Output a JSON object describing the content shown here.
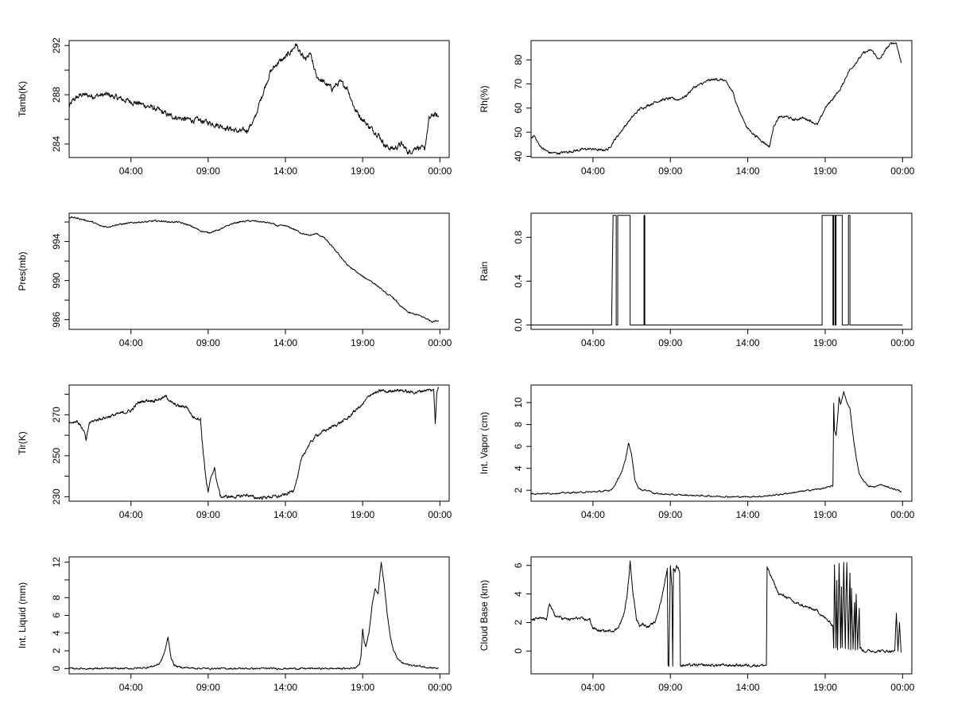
{
  "figure": {
    "background": "#ffffff",
    "line_color": "#000000"
  },
  "chart_data": [
    {
      "type": "line",
      "ylabel": "Tamb(K)",
      "xlabel": "",
      "xlim": [
        0,
        24.6
      ],
      "ylim": [
        282.9,
        292.4
      ],
      "yticks": [
        284,
        288,
        292
      ],
      "ytick_labels": [
        "284",
        "288",
        "292"
      ],
      "xticks": [
        4,
        9,
        14,
        19,
        24
      ],
      "xtick_labels": [
        "04:00",
        "09:00",
        "14:00",
        "19:00",
        "00:00"
      ],
      "noise": 0.35,
      "x": [
        0.0,
        0.3,
        0.8,
        1.5,
        2.5,
        3.0,
        3.5,
        4.5,
        5.5,
        6.0,
        6.5,
        7.5,
        8.5,
        9.5,
        10.5,
        11.0,
        11.5,
        12.0,
        12.5,
        13.0,
        13.5,
        14.0,
        14.4,
        14.7,
        15.0,
        15.3,
        15.6,
        16.0,
        16.5,
        17.0,
        17.5,
        18.0,
        18.5,
        19.0,
        19.5,
        20.0,
        20.5,
        21.0,
        21.5,
        22.0,
        22.5,
        23.0,
        23.3,
        23.6,
        23.9
      ],
      "y": [
        287.0,
        287.6,
        288.0,
        287.9,
        288.0,
        287.8,
        287.6,
        287.3,
        286.9,
        286.6,
        286.3,
        286.0,
        285.9,
        285.6,
        285.2,
        285.0,
        285.1,
        286.0,
        288.0,
        289.8,
        290.6,
        291.0,
        291.6,
        292.1,
        291.2,
        290.8,
        291.3,
        289.5,
        289.0,
        288.5,
        289.0,
        288.6,
        286.8,
        286.0,
        285.3,
        284.8,
        283.8,
        283.6,
        284.0,
        283.3,
        283.8,
        283.5,
        286.0,
        286.4,
        286.2
      ]
    },
    {
      "type": "line",
      "ylabel": "Rh(%)",
      "xlabel": "",
      "xlim": [
        0,
        24.6
      ],
      "ylim": [
        39.5,
        88.0
      ],
      "yticks": [
        40,
        50,
        60,
        70,
        80
      ],
      "ytick_labels": [
        "40",
        "50",
        "60",
        "70",
        "80"
      ],
      "xticks": [
        4,
        9,
        14,
        19,
        24
      ],
      "xtick_labels": [
        "04:00",
        "09:00",
        "14:00",
        "19:00",
        "00:00"
      ],
      "noise": 0.8,
      "x": [
        0.0,
        0.2,
        0.5,
        0.8,
        1.2,
        1.8,
        2.5,
        3.0,
        3.5,
        4.0,
        4.5,
        5.0,
        5.3,
        5.6,
        6.0,
        6.5,
        7.0,
        7.5,
        8.0,
        8.5,
        9.0,
        9.5,
        10.0,
        10.5,
        11.0,
        11.5,
        12.0,
        12.5,
        13.0,
        13.5,
        14.0,
        14.5,
        15.0,
        15.4,
        15.7,
        16.0,
        16.5,
        17.0,
        17.5,
        18.0,
        18.5,
        19.0,
        19.5,
        20.0,
        20.5,
        21.0,
        21.5,
        22.0,
        22.5,
        23.0,
        23.3,
        23.6,
        23.9
      ],
      "y": [
        48.0,
        48.5,
        45.0,
        43.0,
        41.5,
        41.3,
        42.0,
        42.5,
        43.0,
        43.0,
        42.5,
        43.0,
        46.0,
        48.5,
        52.0,
        56.0,
        59.5,
        61.0,
        62.5,
        63.5,
        64.0,
        63.5,
        65.0,
        68.5,
        70.0,
        71.5,
        72.0,
        71.5,
        67.0,
        58.0,
        51.5,
        48.5,
        46.0,
        44.0,
        53.0,
        56.0,
        56.5,
        55.0,
        56.0,
        55.0,
        53.0,
        60.0,
        64.0,
        68.0,
        75.0,
        79.0,
        83.0,
        84.0,
        80.0,
        85.0,
        87.0,
        87.0,
        79.0
      ]
    },
    {
      "type": "line",
      "ylabel": "Pres(mb)",
      "xlabel": "",
      "xlim": [
        0,
        24.6
      ],
      "ylim": [
        985.0,
        996.9
      ],
      "yticks": [
        986,
        990,
        994
      ],
      "ytick_labels": [
        "986",
        "990",
        "994"
      ],
      "noise": 0.12,
      "xticks": [
        4,
        9,
        14,
        19,
        24
      ],
      "xtick_labels": [
        "04:00",
        "09:00",
        "14:00",
        "19:00",
        "00:00"
      ],
      "x": [
        0.0,
        0.5,
        1.0,
        1.5,
        2.0,
        2.5,
        3.0,
        3.5,
        4.0,
        4.5,
        5.0,
        5.5,
        6.0,
        6.5,
        7.0,
        7.5,
        8.0,
        8.5,
        9.0,
        9.5,
        10.0,
        10.5,
        11.0,
        11.5,
        12.0,
        12.5,
        13.0,
        13.5,
        14.0,
        14.5,
        15.0,
        15.5,
        16.0,
        16.5,
        17.0,
        17.5,
        18.0,
        18.5,
        19.0,
        19.5,
        20.0,
        20.5,
        21.0,
        21.5,
        22.0,
        22.5,
        23.0,
        23.5,
        23.9
      ],
      "y": [
        996.5,
        996.4,
        996.2,
        996.0,
        995.6,
        995.5,
        995.7,
        995.8,
        995.9,
        996.0,
        996.0,
        996.1,
        996.1,
        996.0,
        996.0,
        995.8,
        995.5,
        995.1,
        994.9,
        995.1,
        995.4,
        995.8,
        996.0,
        996.1,
        996.1,
        996.0,
        995.9,
        995.6,
        995.6,
        995.3,
        994.9,
        994.6,
        994.8,
        994.4,
        993.5,
        992.6,
        991.6,
        991.0,
        990.4,
        990.0,
        989.4,
        988.7,
        988.2,
        987.3,
        986.7,
        986.5,
        986.2,
        985.8,
        985.9
      ]
    },
    {
      "type": "line",
      "ylabel": "Rain",
      "xlabel": "",
      "xlim": [
        0,
        24.6
      ],
      "ylim": [
        -0.04,
        1.02
      ],
      "yticks": [
        0.0,
        0.4,
        0.8
      ],
      "ytick_labels": [
        "0.0",
        "0.4",
        "0.8"
      ],
      "noise": 0,
      "xticks": [
        4,
        9,
        14,
        19,
        24
      ],
      "xtick_labels": [
        "04:00",
        "09:00",
        "14:00",
        "19:00",
        "00:00"
      ],
      "x": [
        0.0,
        5.2,
        5.25,
        5.3,
        5.5,
        5.5,
        5.6,
        5.6,
        6.4,
        6.4,
        7.3,
        7.3,
        7.35,
        7.35,
        18.8,
        18.8,
        19.2,
        19.5,
        19.5,
        19.55,
        19.55,
        19.65,
        19.65,
        19.7,
        19.7,
        20.1,
        20.1,
        20.5,
        20.5,
        20.6,
        20.6,
        24.0
      ],
      "y": [
        0,
        0,
        0.5,
        1,
        1,
        0,
        0,
        1,
        1,
        0,
        0,
        1,
        1,
        0,
        0,
        1,
        1,
        1,
        0,
        0,
        1,
        1,
        0,
        0,
        1,
        1,
        0,
        0,
        1,
        1,
        0,
        0
      ]
    },
    {
      "type": "line",
      "ylabel": "Tir(K)",
      "xlabel": "",
      "xlim": [
        0,
        24.6
      ],
      "ylim": [
        227.8,
        284.5
      ],
      "yticks": [
        230,
        250,
        270
      ],
      "ytick_labels": [
        "230",
        "250",
        "270"
      ],
      "noise": 1.2,
      "xticks": [
        4,
        9,
        14,
        19,
        24
      ],
      "xtick_labels": [
        "04:00",
        "09:00",
        "14:00",
        "19:00",
        "00:00"
      ],
      "x": [
        0.0,
        0.5,
        0.8,
        1.0,
        1.1,
        1.3,
        1.6,
        2.0,
        2.5,
        3.0,
        3.5,
        4.0,
        4.5,
        5.0,
        5.5,
        6.0,
        6.3,
        6.6,
        6.8,
        7.2,
        7.6,
        8.0,
        8.5,
        8.6,
        8.7,
        8.9,
        9.0,
        9.2,
        9.4,
        9.6,
        9.8,
        10.5,
        11.0,
        11.5,
        12.0,
        12.5,
        13.0,
        13.5,
        14.0,
        14.5,
        14.8,
        15.0,
        15.2,
        15.5,
        16.0,
        16.5,
        17.0,
        17.5,
        18.0,
        18.5,
        19.0,
        19.5,
        20.0,
        20.3,
        20.5,
        21.0,
        21.5,
        22.0,
        22.5,
        23.0,
        23.4,
        23.6,
        23.7,
        23.8,
        23.9
      ],
      "y": [
        266,
        267,
        264,
        261,
        257,
        266,
        267,
        268,
        269,
        270,
        271,
        272,
        276,
        277,
        277,
        278,
        279,
        276,
        275,
        274,
        274,
        269,
        268,
        258,
        250,
        236,
        232,
        240,
        244,
        236,
        230,
        230,
        230,
        231,
        229.5,
        229.5,
        230,
        230,
        231,
        233,
        240,
        247,
        251,
        255,
        260,
        262,
        264,
        266,
        268,
        272,
        275,
        280,
        281,
        282,
        281,
        282,
        282,
        281,
        281,
        282,
        282,
        282,
        266,
        281,
        283
      ]
    },
    {
      "type": "line",
      "ylabel": "Int. Vapor (cm)",
      "xlabel": "",
      "xlim": [
        0,
        24.6
      ],
      "ylim": [
        1.0,
        11.6
      ],
      "yticks": [
        2,
        4,
        6,
        8,
        10
      ],
      "ytick_labels": [
        "2",
        "4",
        "6",
        "8",
        "10"
      ],
      "noise": 0.1,
      "xticks": [
        4,
        9,
        14,
        19,
        24
      ],
      "xtick_labels": [
        "04:00",
        "09:00",
        "14:00",
        "19:00",
        "00:00"
      ],
      "x": [
        0.0,
        1.0,
        2.0,
        3.0,
        4.0,
        5.0,
        5.3,
        5.6,
        5.9,
        6.1,
        6.3,
        6.5,
        6.7,
        6.9,
        7.2,
        7.6,
        8.0,
        9.0,
        10.0,
        11.0,
        12.0,
        13.0,
        14.0,
        15.0,
        16.0,
        17.0,
        18.0,
        18.5,
        19.0,
        19.5,
        19.55,
        19.6,
        19.7,
        19.8,
        19.9,
        20.0,
        20.2,
        20.4,
        20.6,
        20.8,
        21.0,
        21.2,
        21.5,
        21.8,
        22.2,
        22.6,
        23.0,
        23.5,
        23.9
      ],
      "y": [
        1.7,
        1.7,
        1.75,
        1.8,
        1.85,
        1.95,
        2.2,
        3.0,
        3.8,
        4.8,
        6.3,
        5.2,
        3.0,
        2.3,
        2.0,
        2.0,
        1.7,
        1.6,
        1.55,
        1.5,
        1.45,
        1.4,
        1.4,
        1.45,
        1.6,
        1.8,
        2.0,
        2.1,
        2.2,
        2.4,
        10.0,
        7.5,
        7.0,
        8.5,
        10.5,
        9.8,
        11.0,
        10.0,
        9.5,
        7.0,
        5.0,
        3.5,
        2.8,
        2.4,
        2.3,
        2.5,
        2.3,
        2.1,
        1.9
      ]
    },
    {
      "type": "line",
      "ylabel": "Int. Liquid (mm)",
      "xlabel": "",
      "xlim": [
        0,
        24.6
      ],
      "ylim": [
        -0.6,
        12.6
      ],
      "yticks": [
        0,
        2,
        4,
        6,
        8,
        12
      ],
      "ytick_labels": [
        "0",
        "2",
        "4",
        "6",
        "8",
        "12"
      ],
      "noise": 0.15,
      "xticks": [
        4,
        9,
        14,
        19,
        24
      ],
      "xtick_labels": [
        "04:00",
        "09:00",
        "14:00",
        "19:00",
        "00:00"
      ],
      "x": [
        0.0,
        2.0,
        4.0,
        5.0,
        5.5,
        5.8,
        6.0,
        6.2,
        6.4,
        6.6,
        6.8,
        7.0,
        7.5,
        8.0,
        9.0,
        12.0,
        15.0,
        18.0,
        18.5,
        18.8,
        18.9,
        19.0,
        19.1,
        19.2,
        19.4,
        19.6,
        19.8,
        20.0,
        20.2,
        20.4,
        20.6,
        20.8,
        21.0,
        21.3,
        21.6,
        22.0,
        22.5,
        23.0,
        23.5,
        23.9
      ],
      "y": [
        0,
        0,
        0,
        0.1,
        0.3,
        0.5,
        1.0,
        2.0,
        3.5,
        1.2,
        0.4,
        0.2,
        0.1,
        0.05,
        0,
        0,
        0,
        0,
        0.1,
        0.5,
        1.5,
        4.5,
        3.0,
        2.5,
        4.0,
        7.0,
        9.0,
        8.5,
        12.0,
        9.5,
        6.0,
        3.5,
        2.0,
        1.0,
        0.6,
        0.4,
        0.3,
        0.2,
        0.1,
        0.0
      ]
    },
    {
      "type": "line",
      "ylabel": "Cloud Base (km)",
      "xlabel": "",
      "xlim": [
        0,
        24.6
      ],
      "ylim": [
        -1.6,
        6.6
      ],
      "yticks": [
        0,
        2,
        4,
        6
      ],
      "ytick_labels": [
        "0",
        "2",
        "4",
        "6"
      ],
      "noise": 0.15,
      "xticks": [
        4,
        9,
        14,
        19,
        24
      ],
      "xtick_labels": [
        "04:00",
        "09:00",
        "14:00",
        "19:00",
        "00:00"
      ],
      "x": [
        0.0,
        0.2,
        0.5,
        1.0,
        1.2,
        1.5,
        2.0,
        2.5,
        3.0,
        3.5,
        3.8,
        4.0,
        4.5,
        5.0,
        5.5,
        5.8,
        6.0,
        6.2,
        6.4,
        6.6,
        6.8,
        7.0,
        7.2,
        7.6,
        8.0,
        8.4,
        8.7,
        8.8,
        8.85,
        8.9,
        9.0,
        9.1,
        9.15,
        9.2,
        9.3,
        9.4,
        9.5,
        9.6,
        9.65,
        10.0,
        12.0,
        14.0,
        15.2,
        15.25,
        15.3,
        15.6,
        16.0,
        16.5,
        17.0,
        17.5,
        18.0,
        18.5,
        19.0,
        19.5,
        19.55,
        19.6,
        19.7,
        19.75,
        19.8,
        19.9,
        20.0,
        20.05,
        20.1,
        20.2,
        20.3,
        20.35,
        20.4,
        20.5,
        20.6,
        20.65,
        20.7,
        20.8,
        20.9,
        20.95,
        21.0,
        21.1,
        21.2,
        21.25,
        21.3,
        21.5,
        22.0,
        22.5,
        23.0,
        23.5,
        23.6,
        23.7,
        23.8,
        23.9
      ],
      "y": [
        2.2,
        2.2,
        2.3,
        2.2,
        3.4,
        2.5,
        2.3,
        2.2,
        2.3,
        2.2,
        2.2,
        1.6,
        1.4,
        1.4,
        1.5,
        2.0,
        2.6,
        3.8,
        6.2,
        4.0,
        2.3,
        1.8,
        1.9,
        1.7,
        2.0,
        3.5,
        5.2,
        5.8,
        -1.0,
        -1.0,
        6.0,
        4.5,
        -1.0,
        5.8,
        5.6,
        6.0,
        5.8,
        5.5,
        -1.0,
        -1.0,
        -1.0,
        -1.0,
        -1.0,
        5.9,
        5.7,
        5.0,
        4.0,
        3.8,
        3.4,
        3.2,
        3.0,
        2.8,
        2.3,
        1.8,
        0.2,
        6.0,
        0.2,
        5.0,
        0.2,
        6.2,
        0.2,
        4.5,
        0.2,
        6.2,
        0.2,
        4.0,
        6.2,
        0.2,
        5.5,
        0.2,
        4.5,
        0.2,
        3.5,
        0.2,
        4.0,
        0.2,
        3.0,
        0.2,
        0.2,
        0.0,
        0.0,
        0.0,
        0.0,
        0.0,
        2.7,
        0.0,
        2.0,
        0.0
      ]
    }
  ]
}
